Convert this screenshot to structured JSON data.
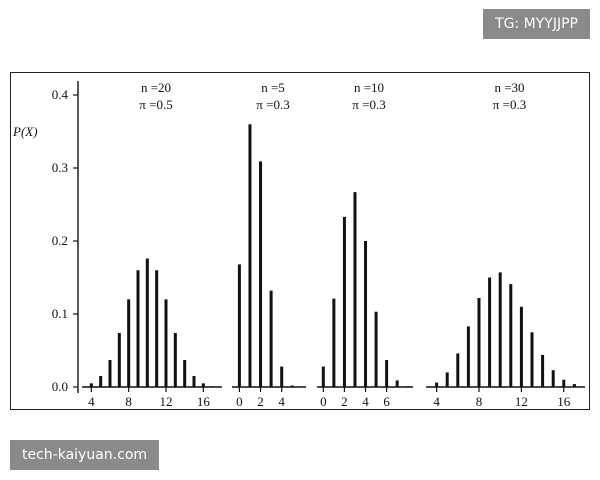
{
  "watermarks": {
    "top_right": "TG: MYYJJPP",
    "bottom_left": "tech-kaiyuan.com"
  },
  "chart_data": {
    "type": "bar",
    "ylabel": "P(X)",
    "ylim": [
      0,
      0.4
    ],
    "yticks": [
      "0.0",
      "0.1",
      "0.2",
      "0.3",
      "0.4"
    ],
    "grid": false,
    "panels": [
      {
        "n_label": "n =20",
        "pi_label": "π =0.5",
        "xlim": [
          3,
          18
        ],
        "xticks": [
          4,
          8,
          12,
          16
        ],
        "x": [
          4,
          5,
          6,
          7,
          8,
          9,
          10,
          11,
          12,
          13,
          14,
          15,
          16,
          17
        ],
        "values": [
          0.005,
          0.015,
          0.037,
          0.074,
          0.12,
          0.16,
          0.176,
          0.16,
          0.12,
          0.074,
          0.037,
          0.015,
          0.005,
          0.001
        ]
      },
      {
        "n_label": "n =5",
        "pi_label": "π =0.3",
        "xlim": [
          -0.7,
          6.3
        ],
        "xticks": [
          0,
          2,
          4
        ],
        "x": [
          0,
          1,
          2,
          3,
          4,
          5
        ],
        "values": [
          0.168,
          0.36,
          0.309,
          0.132,
          0.028,
          0.002
        ]
      },
      {
        "n_label": "n =10",
        "pi_label": "π =0.3",
        "xlim": [
          -0.6,
          8.5
        ],
        "xticks": [
          0,
          2,
          4,
          6
        ],
        "x": [
          0,
          1,
          2,
          3,
          4,
          5,
          6,
          7,
          8
        ],
        "values": [
          0.028,
          0.121,
          0.233,
          0.267,
          0.2,
          0.103,
          0.037,
          0.009,
          0.001
        ]
      },
      {
        "n_label": "n =30",
        "pi_label": "π =0.3",
        "xlim": [
          3,
          18
        ],
        "xticks": [
          4,
          8,
          12,
          16
        ],
        "x": [
          4,
          5,
          6,
          7,
          8,
          9,
          10,
          11,
          12,
          13,
          14,
          15,
          16,
          17
        ],
        "values": [
          0.006,
          0.02,
          0.046,
          0.083,
          0.122,
          0.15,
          0.157,
          0.141,
          0.11,
          0.075,
          0.044,
          0.023,
          0.01,
          0.004
        ]
      }
    ]
  }
}
